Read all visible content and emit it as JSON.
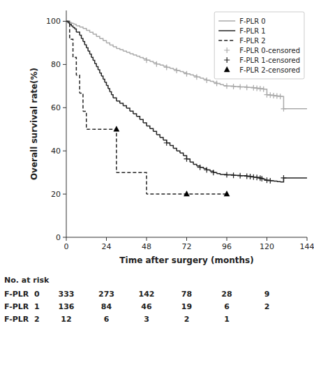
{
  "chart_data": {
    "type": "step",
    "xlabel": "Time after surgery (months)",
    "ylabel": "Overall survival rate(%)",
    "xlim": [
      0,
      144
    ],
    "ylim": [
      0,
      105
    ],
    "xticks": [
      0,
      24,
      48,
      72,
      96,
      120,
      144
    ],
    "yticks": [
      0,
      20,
      40,
      60,
      80,
      100
    ],
    "grid": false,
    "legend": "upper right",
    "series": [
      {
        "name": "F-PLR 0",
        "type": "step",
        "color": "#aaaaaa",
        "line_style": "solid",
        "x": [
          0,
          1,
          2,
          3,
          4,
          5,
          6,
          8,
          10,
          12,
          14,
          16,
          18,
          20,
          22,
          24,
          26,
          28,
          30,
          32,
          34,
          36,
          38,
          40,
          42,
          44,
          46,
          48,
          50,
          52,
          54,
          56,
          58,
          60,
          62,
          64,
          66,
          68,
          70,
          72,
          74,
          76,
          78,
          80,
          82,
          84,
          86,
          88,
          90,
          92,
          94,
          96,
          100,
          104,
          108,
          112,
          114,
          116,
          118,
          120,
          122,
          124,
          126,
          128,
          130,
          144
        ],
        "values": [
          100,
          99.7,
          99.4,
          99.1,
          98.8,
          98.5,
          97.9,
          97.3,
          96.7,
          95.8,
          94.9,
          94.0,
          93.0,
          92.0,
          91.0,
          90.0,
          89.0,
          88.2,
          87.4,
          86.8,
          86.2,
          85.6,
          85.0,
          84.4,
          83.8,
          83.2,
          82.6,
          82.0,
          81.4,
          80.8,
          80.2,
          79.7,
          79.2,
          78.7,
          78.2,
          77.7,
          77.2,
          76.7,
          76.2,
          75.7,
          75.2,
          74.7,
          74.2,
          73.7,
          73.2,
          72.7,
          72.2,
          71.7,
          71.2,
          70.7,
          70.2,
          70.0,
          69.8,
          69.6,
          69.4,
          69.2,
          69.0,
          68.8,
          68.6,
          66.0,
          65.8,
          65.6,
          65.4,
          65.2,
          59.5,
          59.5
        ]
      },
      {
        "name": "F-PLR 1",
        "type": "step",
        "color": "#222222",
        "line_style": "solid",
        "x": [
          0,
          1,
          2,
          3,
          4,
          5,
          6,
          8,
          9,
          10,
          11,
          12,
          13,
          14,
          15,
          16,
          17,
          18,
          19,
          20,
          21,
          22,
          23,
          24,
          25,
          26,
          27,
          28,
          30,
          32,
          34,
          36,
          38,
          40,
          42,
          44,
          46,
          48,
          50,
          52,
          54,
          56,
          58,
          60,
          62,
          64,
          66,
          68,
          70,
          72,
          74,
          76,
          78,
          80,
          82,
          84,
          86,
          88,
          90,
          92,
          96,
          100,
          104,
          108,
          110,
          112,
          114,
          116,
          117,
          118,
          119,
          120,
          122,
          124,
          126,
          128,
          130,
          144
        ],
        "values": [
          100,
          99.3,
          98.6,
          97.8,
          97.1,
          96.4,
          95.0,
          93.5,
          92.0,
          90.6,
          89.1,
          87.7,
          86.2,
          84.8,
          83.3,
          81.9,
          80.4,
          79.0,
          77.5,
          76.0,
          74.6,
          73.2,
          71.7,
          70.3,
          68.8,
          67.4,
          66.0,
          64.5,
          63.1,
          62.0,
          60.9,
          59.8,
          58.4,
          57.2,
          56.0,
          54.5,
          53.0,
          51.5,
          50.3,
          49.0,
          47.5,
          46.2,
          45.0,
          43.7,
          42.5,
          41.2,
          40.0,
          39.0,
          37.8,
          36.3,
          34.8,
          33.8,
          33.0,
          32.4,
          31.8,
          31.2,
          30.6,
          30.0,
          29.5,
          29.1,
          28.9,
          28.7,
          28.5,
          28.3,
          28.1,
          27.9,
          27.7,
          27.4,
          27.1,
          26.8,
          26.6,
          26.4,
          26.2,
          26.0,
          25.8,
          25.6,
          27.5,
          27.5
        ]
      },
      {
        "name": "F-PLR 2",
        "type": "step",
        "color": "#222222",
        "line_style": "dashed",
        "x": [
          0,
          2,
          4,
          6,
          8,
          10,
          12,
          14,
          16,
          18,
          20,
          22,
          24,
          30,
          36,
          48,
          54,
          60,
          66,
          72,
          78,
          84,
          90,
          96
        ],
        "values": [
          100,
          91.7,
          83.3,
          75.0,
          66.7,
          58.3,
          50.0,
          50.0,
          50.0,
          50.0,
          50.0,
          50.0,
          50.0,
          30.0,
          30.0,
          20.0,
          20.0,
          20.0,
          20.0,
          20.0,
          20.0,
          20.0,
          20.0,
          20.0
        ]
      },
      {
        "name": "F-PLR 0-censored",
        "type": "scatter",
        "color": "#aaaaaa",
        "marker": "plus",
        "x": [
          48,
          54,
          60,
          66,
          72,
          78,
          84,
          90,
          96,
          100,
          104,
          108,
          112,
          114,
          116,
          118,
          120,
          122,
          124,
          126,
          128,
          130
        ],
        "values": [
          82.0,
          80.2,
          78.7,
          77.2,
          75.7,
          74.2,
          72.7,
          71.2,
          70.0,
          69.8,
          69.6,
          69.4,
          69.2,
          69.0,
          68.8,
          68.6,
          66.0,
          65.8,
          65.6,
          65.4,
          65.2,
          59.5
        ]
      },
      {
        "name": "F-PLR 1-censored",
        "type": "scatter",
        "color": "#222222",
        "marker": "plus",
        "x": [
          60,
          72,
          80,
          84,
          88,
          96,
          100,
          104,
          108,
          110,
          112,
          114,
          116,
          117,
          120,
          122,
          130
        ],
        "values": [
          43.7,
          36.3,
          32.4,
          31.2,
          30.0,
          28.9,
          28.7,
          28.5,
          28.3,
          28.1,
          27.9,
          27.7,
          27.4,
          27.1,
          26.4,
          26.2,
          27.5
        ]
      },
      {
        "name": "F-PLR 2-censored",
        "type": "scatter",
        "color": "#000000",
        "marker": "triangle",
        "x": [
          30,
          72,
          96
        ],
        "values": [
          50.0,
          20.0,
          20.0
        ]
      }
    ],
    "risk_table": {
      "title": "No. at risk",
      "labels": [
        "F-PLR  0",
        "F-PLR  1",
        "F-PLR  2"
      ],
      "times": [
        0,
        24,
        48,
        72,
        96,
        120
      ],
      "values": [
        [
          333,
          273,
          142,
          78,
          28,
          9
        ],
        [
          136,
          84,
          46,
          19,
          6,
          2
        ],
        [
          12,
          6,
          3,
          2,
          1,
          null
        ]
      ]
    }
  }
}
